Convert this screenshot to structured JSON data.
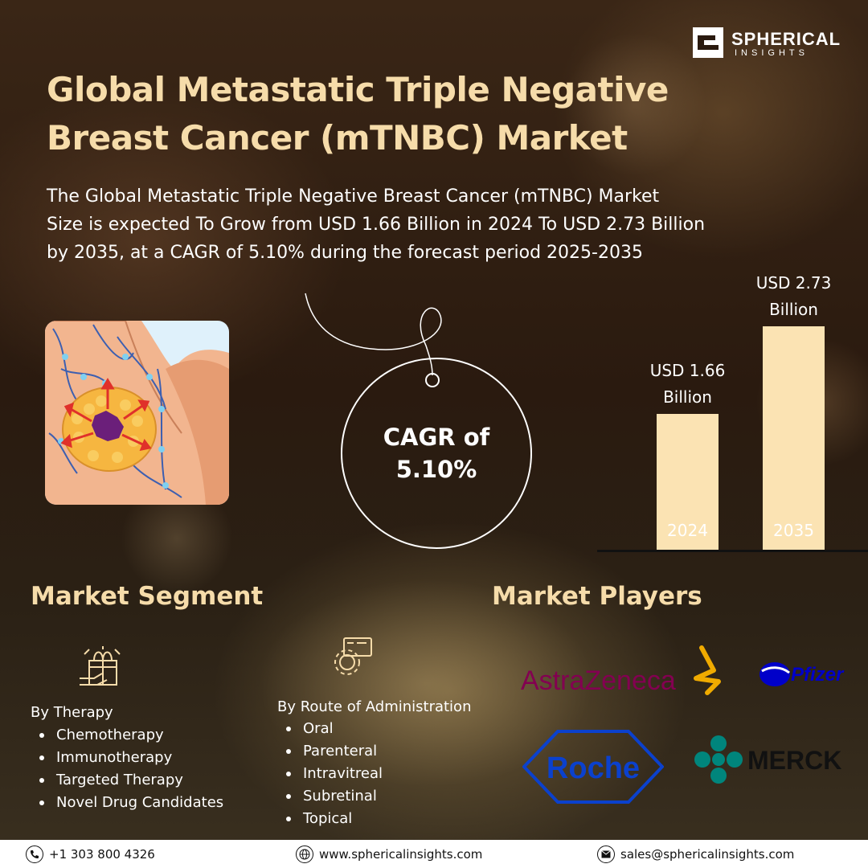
{
  "brand": {
    "name": "SPHERICAL",
    "tagline": "INSIGHTS"
  },
  "title_line1": "Global Metastatic Triple Negative",
  "title_line2": "Breast Cancer (mTNBC) Market",
  "description_line1": "The Global Metastatic Triple Negative Breast Cancer (mTNBC) Market",
  "description_line2": "Size is expected To Grow from USD 1.66 Billion in 2024 To USD 2.73 Billion",
  "description_line3": "by 2035, at a CAGR of 5.10% during the forecast period 2025-2035",
  "cagr": {
    "line1": "CAGR of",
    "line2": "5.10%"
  },
  "chart_data": {
    "type": "bar",
    "categories": [
      "2024",
      "2035"
    ],
    "values": [
      1.66,
      2.73
    ],
    "value_labels": [
      [
        "USD 1.66",
        "Billion"
      ],
      [
        "USD 2.73",
        "Billion"
      ]
    ],
    "unit": "USD Billion",
    "title": "",
    "xlabel": "",
    "ylabel": "",
    "ylim": [
      0,
      2.73
    ],
    "grid": false,
    "legend": "none"
  },
  "segment": {
    "title": "Market Segment",
    "therapy": {
      "heading": "By Therapy",
      "icon": "gift-box-hand-icon",
      "items": [
        "Chemotherapy",
        "Immunotherapy",
        "Targeted Therapy",
        "Novel Drug Candidates"
      ]
    },
    "route": {
      "heading": "By Route of Administration",
      "icon": "gear-settings-icon",
      "items": [
        "Oral",
        "Parenteral",
        "Intravitreal",
        "Subretinal",
        "Topical"
      ]
    }
  },
  "players": {
    "title": "Market Players",
    "logos": [
      "AstraZeneca",
      "Pfizer",
      "Roche",
      "MERCK"
    ]
  },
  "footer": {
    "phone": "+1 303 800 4326",
    "website": "www.sphericalinsights.com",
    "email": "sales@sphericalinsights.com"
  },
  "colors": {
    "title": "#f6dcaa",
    "bar": "#fbe3b3",
    "astrazeneca_text": "#830051",
    "astrazeneca_mark": "#f0ab00",
    "pfizer": "#0000c9",
    "roche": "#0b41cd",
    "merck": "#00857c"
  }
}
